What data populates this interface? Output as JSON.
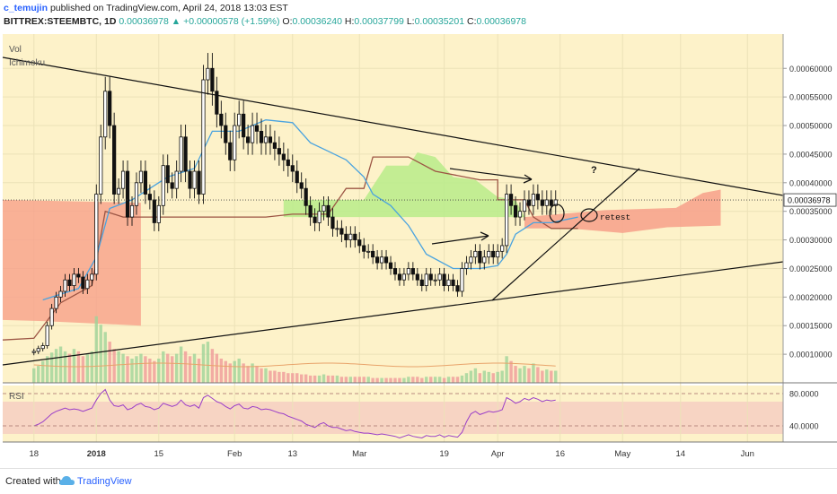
{
  "header": {
    "author": "c_temujin",
    "published_text": "published on TradingView.com, April 24, 2018 13:03 EST",
    "symbol": "BITTREX:STEEMBTC, 1D",
    "last": "0.00036978",
    "change": "+0.00000578 (+1.59%)",
    "open_label": "O:",
    "open": "0.00036240",
    "high_label": "H:",
    "high": "0.00037799",
    "low_label": "L:",
    "low": "0.00035201",
    "close_label": "C:",
    "close": "0.00036978"
  },
  "indicators": {
    "vol": "Vol",
    "ichimoku": "Ichimoku",
    "rsi": "RSI"
  },
  "footer": {
    "created_with": "Created with",
    "brand": "TradingView"
  },
  "colors": {
    "background": "#fdf2c9",
    "cloud_bull": "#b8ec8a",
    "cloud_bear": "#f7a08a",
    "kijun": "#9c5544",
    "tenkan": "#4aa3df",
    "candle": "#111111",
    "rsi_line": "#9b3fc8",
    "rsi_band": "#f3c8c0",
    "price_tag": "#ffffff"
  },
  "chart_data": {
    "type": "candlestick",
    "y_axis_ticks": [
      "0.00060000",
      "0.00055000",
      "0.00050000",
      "0.00045000",
      "0.00040000",
      "0.00035000",
      "0.00030000",
      "0.00025000",
      "0.00020000",
      "0.00015000",
      "0.00010000"
    ],
    "y_ticks_values": [
      0.0006,
      0.00055,
      0.0005,
      0.00045,
      0.0004,
      0.00035,
      0.0003,
      0.00025,
      0.0002,
      0.00015,
      0.0001
    ],
    "ylim": [
      5e-05,
      0.00066
    ],
    "current_price_label": "0.00036978",
    "x_axis_ticks": [
      "18",
      "2018",
      "15",
      "Feb",
      "13",
      "Mar",
      "19",
      "Apr",
      "16",
      "May",
      "14",
      "Jun"
    ],
    "x_tick_days": [
      0,
      14,
      28,
      45,
      58,
      73,
      92,
      104,
      118,
      132,
      145,
      160
    ],
    "x_range_days": [
      -7,
      168
    ],
    "rsi_ticks": [
      "80.0000",
      "40.0000"
    ],
    "rsi_tick_values": [
      80,
      40
    ],
    "rsi_range": [
      20,
      90
    ],
    "rsi_band": [
      30,
      70
    ],
    "annotations": [
      "?",
      "retest"
    ],
    "candles_close": [
      0.000105,
      0.00011,
      0.000115,
      0.00015,
      0.00018,
      0.0002,
      0.00021,
      0.00023,
      0.00022,
      0.00024,
      0.000235,
      0.000215,
      0.00023,
      0.00024,
      0.00038,
      0.00048,
      0.00056,
      0.0005,
      0.00038,
      0.00039,
      0.00042,
      0.00034,
      0.00036,
      0.0004,
      0.00042,
      0.00038,
      0.00037,
      0.00033,
      0.00036,
      0.00043,
      0.0004,
      0.00039,
      0.00042,
      0.00048,
      0.00042,
      0.00039,
      0.00042,
      0.00038,
      0.00058,
      0.0006,
      0.00056,
      0.00052,
      0.0005,
      0.00047,
      0.00044,
      0.0005,
      0.00052,
      0.00048,
      0.00047,
      0.0005,
      0.00049,
      0.00047,
      0.00048,
      0.00047,
      0.00046,
      0.00045,
      0.00044,
      0.00043,
      0.00042,
      0.0004,
      0.00039,
      0.00036,
      0.00034,
      0.00033,
      0.00035,
      0.00036,
      0.00034,
      0.00032,
      0.00032,
      0.00031,
      0.0003,
      0.00031,
      0.0003,
      0.00029,
      0.00028,
      0.00028,
      0.00027,
      0.00026,
      0.00027,
      0.00026,
      0.00025,
      0.00024,
      0.00023,
      0.00024,
      0.00025,
      0.00024,
      0.00023,
      0.00022,
      0.00024,
      0.00023,
      0.00023,
      0.00024,
      0.00022,
      0.00023,
      0.00022,
      0.00021,
      0.00025,
      0.00026,
      0.00027,
      0.00028,
      0.00026,
      0.00027,
      0.00028,
      0.00027,
      0.00028,
      0.00029,
      0.00038,
      0.00036,
      0.00034,
      0.00035,
      0.00037,
      0.00036,
      0.00038,
      0.00037,
      0.00036,
      0.00037,
      0.00036,
      0.00037
    ],
    "rsi_values": [
      40,
      42,
      45,
      50,
      55,
      58,
      60,
      62,
      60,
      61,
      60,
      58,
      60,
      62,
      72,
      80,
      85,
      72,
      65,
      64,
      66,
      60,
      62,
      66,
      68,
      64,
      63,
      60,
      62,
      68,
      66,
      64,
      66,
      72,
      66,
      64,
      66,
      62,
      75,
      78,
      74,
      70,
      68,
      64,
      61,
      65,
      67,
      62,
      61,
      64,
      63,
      60,
      61,
      60,
      58,
      56,
      55,
      52,
      50,
      48,
      46,
      42,
      40,
      38,
      42,
      44,
      40,
      38,
      38,
      36,
      34,
      35,
      33,
      32,
      31,
      31,
      30,
      29,
      30,
      29,
      28,
      27,
      25,
      27,
      29,
      27,
      26,
      25,
      28,
      27,
      27,
      29,
      26,
      28,
      27,
      26,
      32,
      45,
      55,
      58,
      54,
      56,
      58,
      57,
      58,
      60,
      75,
      72,
      68,
      70,
      74,
      72,
      75,
      73,
      70,
      72,
      71,
      72
    ]
  }
}
